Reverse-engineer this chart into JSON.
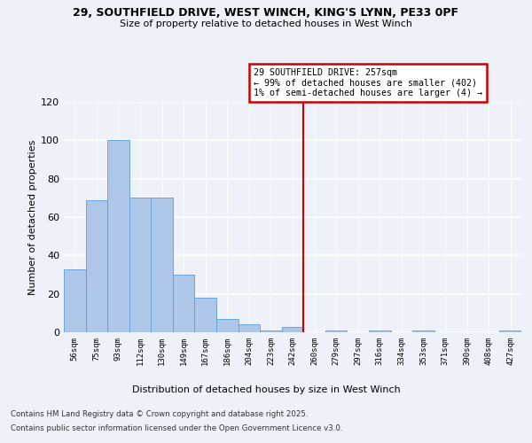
{
  "title1": "29, SOUTHFIELD DRIVE, WEST WINCH, KING'S LYNN, PE33 0PF",
  "title2": "Size of property relative to detached houses in West Winch",
  "xlabel": "Distribution of detached houses by size in West Winch",
  "ylabel": "Number of detached properties",
  "categories": [
    "56sqm",
    "75sqm",
    "93sqm",
    "112sqm",
    "130sqm",
    "149sqm",
    "167sqm",
    "186sqm",
    "204sqm",
    "223sqm",
    "242sqm",
    "260sqm",
    "279sqm",
    "297sqm",
    "316sqm",
    "334sqm",
    "353sqm",
    "371sqm",
    "390sqm",
    "408sqm",
    "427sqm"
  ],
  "values": [
    33,
    69,
    100,
    70,
    70,
    30,
    18,
    7,
    4,
    1,
    3,
    0,
    1,
    0,
    1,
    0,
    1,
    0,
    0,
    0,
    1
  ],
  "bar_color": "#aec6e8",
  "bar_edge_color": "#5a9fd4",
  "vline_color": "#cc0000",
  "vline_index": 10.5,
  "annotation_text": "29 SOUTHFIELD DRIVE: 257sqm\n← 99% of detached houses are smaller (402)\n1% of semi-detached houses are larger (4) →",
  "annotation_box_color": "#cc0000",
  "ylim": [
    0,
    120
  ],
  "yticks": [
    0,
    20,
    40,
    60,
    80,
    100,
    120
  ],
  "footer1": "Contains HM Land Registry data © Crown copyright and database right 2025.",
  "footer2": "Contains public sector information licensed under the Open Government Licence v3.0.",
  "bg_color": "#eef2f8"
}
